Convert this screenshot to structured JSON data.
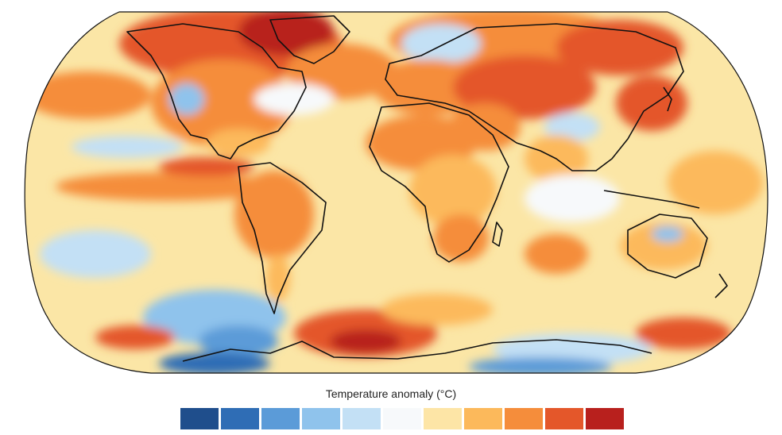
{
  "legend": {
    "title": "Temperature anomaly (°C)",
    "swatches": [
      "#1f4e8c",
      "#2f6db5",
      "#5b9bd8",
      "#8fc3ec",
      "#c3e0f5",
      "#f7f9fb",
      "#fde5a6",
      "#fcb95b",
      "#f58d3b",
      "#e4572a",
      "#b8201d"
    ]
  },
  "map": {
    "projection": "robinson",
    "ocean_base_color": "#fbe6a6",
    "coastline_color": "#111111"
  }
}
